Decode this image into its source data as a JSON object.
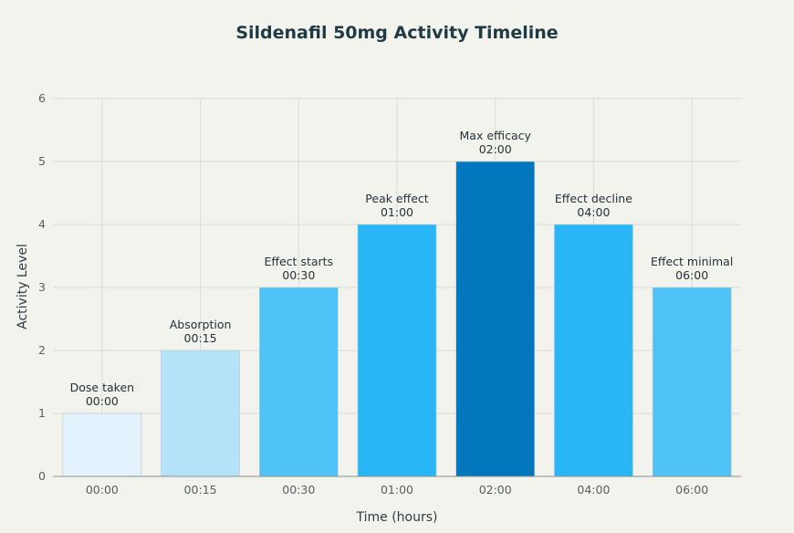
{
  "chart_data": {
    "type": "bar",
    "title": "Sildenafil 50mg Activity Timeline",
    "xlabel": "Time (hours)",
    "ylabel": "Activity Level",
    "ylim": [
      0,
      6
    ],
    "yticks": [
      0,
      1,
      2,
      3,
      4,
      5,
      6
    ],
    "grid": true,
    "categories": [
      "00:00",
      "00:15",
      "00:30",
      "01:00",
      "02:00",
      "04:00",
      "06:00"
    ],
    "values": [
      1,
      2,
      3,
      4,
      5,
      4,
      3
    ],
    "annotations": [
      {
        "label": "Dose taken",
        "time": "00:00"
      },
      {
        "label": "Absorption",
        "time": "00:15"
      },
      {
        "label": "Effect starts",
        "time": "00:30"
      },
      {
        "label": "Peak effect",
        "time": "01:00"
      },
      {
        "label": "Max efficacy",
        "time": "02:00"
      },
      {
        "label": "Effect decline",
        "time": "04:00"
      },
      {
        "label": "Effect minimal",
        "time": "06:00"
      }
    ],
    "colors": [
      "#e3f2fd",
      "#b3e2f9",
      "#4fc3f7",
      "#29b6f6",
      "#0277bd",
      "#29b6f6",
      "#4fc3f7"
    ],
    "bar_stroke": "#b9c7ce"
  }
}
